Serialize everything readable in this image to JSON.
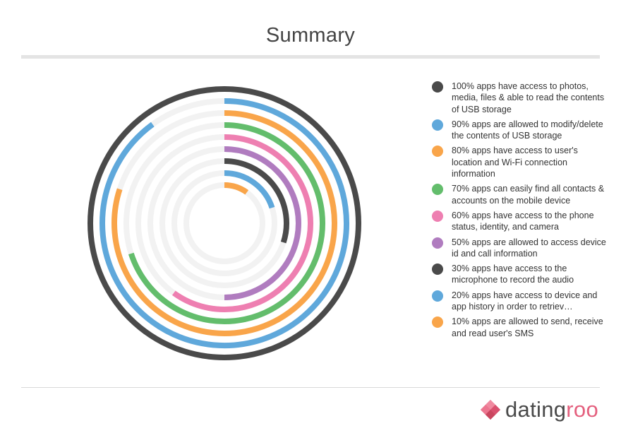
{
  "title": "Summary",
  "chart_data": {
    "type": "radial-bar",
    "title": "Summary",
    "track_color": "#f2f2f2",
    "max": 100,
    "series": [
      {
        "label": "100% apps have access to photos, media, files & able to read the contents of USB storage",
        "value": 100,
        "color": "#4a4a4a"
      },
      {
        "label": "90% apps are allowed to modify/delete the contents of USB storage",
        "value": 90,
        "color": "#5fa8db"
      },
      {
        "label": "80% apps have access to user's location and Wi-Fi connection information",
        "value": 80,
        "color": "#f9a54a"
      },
      {
        "label": "70% apps can easily find all contacts & accounts on the mobile device",
        "value": 70,
        "color": "#63bd6c"
      },
      {
        "label": "60% apps have access to the phone status, identity, and camera",
        "value": 60,
        "color": "#ee7fb1"
      },
      {
        "label": "50% apps are allowed to access device id and call information",
        "value": 50,
        "color": "#b07cbf"
      },
      {
        "label": "30% apps have access to the microphone to record the audio",
        "value": 30,
        "color": "#4a4a4a"
      },
      {
        "label": "20% apps have access to device and app history in order to retriev…",
        "value": 20,
        "color": "#5fa8db"
      },
      {
        "label": "10% apps are allowed to send, receive and read user's SMS",
        "value": 10,
        "color": "#f9a54a"
      }
    ]
  },
  "branding": {
    "name_part1": "dating",
    "name_part2": "roo",
    "logo_icon": "heart-diamond-icon",
    "color_dark": "#4a4a4a",
    "color_accent": "#e4607e"
  }
}
